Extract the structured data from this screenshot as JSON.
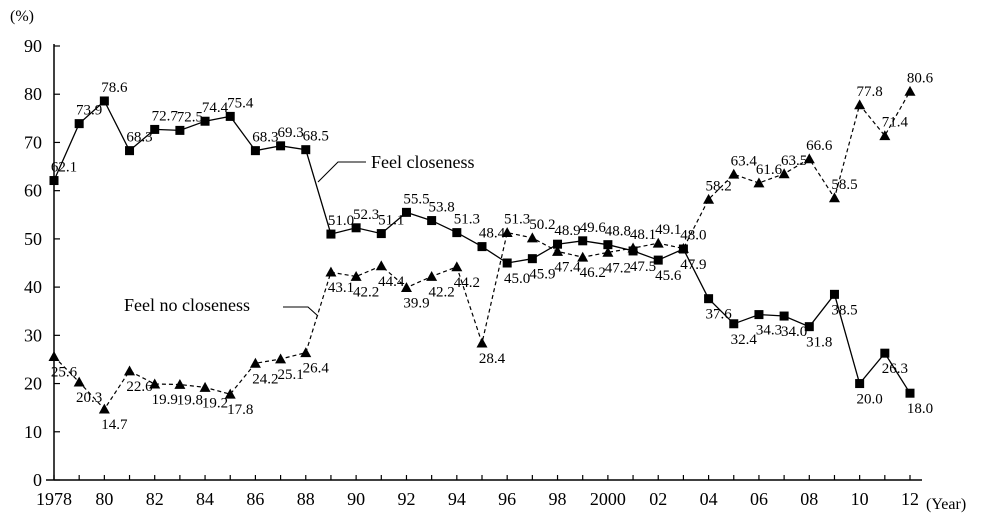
{
  "chart_data": {
    "type": "line",
    "y_unit_label": "(%)",
    "x_unit_label": "(Year)",
    "ylim": [
      0,
      90
    ],
    "yticks": [
      0,
      10,
      20,
      30,
      40,
      50,
      60,
      70,
      80,
      90
    ],
    "xlim": [
      1978,
      2012
    ],
    "xticks": [
      {
        "year": 1978,
        "label": "1978"
      },
      {
        "year": 1980,
        "label": "80"
      },
      {
        "year": 1982,
        "label": "82"
      },
      {
        "year": 1984,
        "label": "84"
      },
      {
        "year": 1986,
        "label": "86"
      },
      {
        "year": 1988,
        "label": "88"
      },
      {
        "year": 1990,
        "label": "90"
      },
      {
        "year": 1992,
        "label": "92"
      },
      {
        "year": 1994,
        "label": "94"
      },
      {
        "year": 1996,
        "label": "96"
      },
      {
        "year": 1998,
        "label": "98"
      },
      {
        "year": 2000,
        "label": "2000"
      },
      {
        "year": 2002,
        "label": "02"
      },
      {
        "year": 2004,
        "label": "04"
      },
      {
        "year": 2006,
        "label": "06"
      },
      {
        "year": 2008,
        "label": "08"
      },
      {
        "year": 2010,
        "label": "10"
      },
      {
        "year": 2012,
        "label": "12"
      }
    ],
    "grid": false,
    "series": [
      {
        "name": "Feel closeness",
        "marker": "square",
        "line_style": "solid",
        "x": [
          1978,
          1979,
          1980,
          1981,
          1982,
          1983,
          1984,
          1985,
          1986,
          1987,
          1988,
          1989,
          1990,
          1991,
          1992,
          1993,
          1994,
          1995,
          1996,
          1997,
          1998,
          1999,
          2000,
          2001,
          2002,
          2003,
          2004,
          2005,
          2006,
          2007,
          2008,
          2009,
          2010,
          2011,
          2012
        ],
        "values": [
          62.1,
          73.9,
          78.6,
          68.3,
          72.7,
          72.5,
          74.4,
          75.4,
          68.3,
          69.3,
          68.5,
          51.0,
          52.3,
          51.1,
          55.5,
          53.8,
          51.3,
          48.4,
          45.0,
          45.9,
          48.9,
          49.6,
          48.8,
          47.5,
          45.6,
          47.9,
          37.6,
          32.4,
          34.3,
          34.0,
          31.8,
          38.5,
          20.0,
          26.3,
          18.0
        ],
        "labels": [
          "62.1",
          "73.9",
          "78.6",
          "68.3",
          "72.7",
          "72.5",
          "74.4",
          "75.4",
          "68.3",
          "69.3",
          "68.5",
          "51.0",
          "52.3",
          "51.1",
          "55.5",
          "53.8",
          "51.3",
          "48.4",
          "45.0",
          "45.9",
          "48.9",
          "49.6",
          "48.8",
          "47.5",
          "45.6",
          "47.9",
          "37.6",
          "32.4",
          "34.3",
          "34.0",
          "31.8",
          "38.5",
          "20.0",
          "26.3",
          "18.0"
        ]
      },
      {
        "name": "Feel no closeness",
        "marker": "triangle",
        "line_style": "dashed",
        "x": [
          1978,
          1979,
          1980,
          1981,
          1982,
          1983,
          1984,
          1985,
          1986,
          1987,
          1988,
          1989,
          1990,
          1991,
          1992,
          1993,
          1994,
          1995,
          1996,
          1997,
          1998,
          1999,
          2000,
          2001,
          2002,
          2003,
          2004,
          2005,
          2006,
          2007,
          2008,
          2009,
          2010,
          2011,
          2012
        ],
        "values": [
          25.6,
          20.3,
          14.7,
          22.6,
          19.9,
          19.8,
          19.2,
          17.8,
          24.2,
          25.1,
          26.4,
          43.1,
          42.2,
          44.4,
          39.9,
          42.2,
          44.2,
          28.4,
          51.3,
          50.2,
          47.4,
          46.2,
          47.2,
          48.1,
          49.1,
          48.0,
          58.2,
          63.4,
          61.6,
          63.5,
          66.6,
          58.5,
          77.8,
          71.4,
          80.6
        ],
        "labels": [
          "25.6",
          "20.3",
          "14.7",
          "22.6",
          "19.9",
          "19.8",
          "19.2",
          "17.8",
          "24.2",
          "25.1",
          "26.4",
          "43.1",
          "42.2",
          "44.4",
          "39.9",
          "42.2",
          "44.2",
          "28.4",
          "51.3",
          "50.2",
          "47.4",
          "46.2",
          "47.2",
          "48.1",
          "49.1",
          "48.0",
          "58.2",
          "63.4",
          "61.6",
          "63.5",
          "66.6",
          "58.5",
          "77.8",
          "71.4",
          "80.6"
        ]
      }
    ],
    "annotations": [
      {
        "text": "Feel closeness",
        "series": 0
      },
      {
        "text": "Feel no closeness",
        "series": 1
      }
    ]
  }
}
